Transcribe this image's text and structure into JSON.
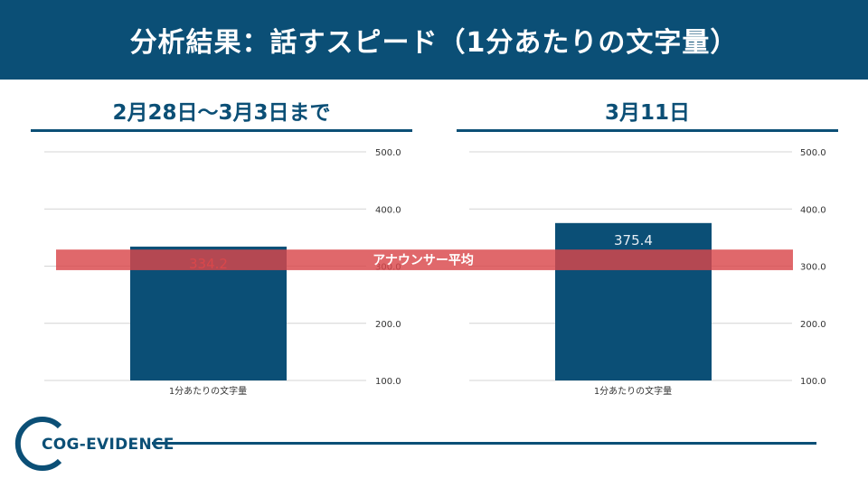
{
  "header": {
    "title": "分析結果：話すスピード（1分あたりの文字量）"
  },
  "colors": {
    "brand": "#0b4f76",
    "bar": "#0b4f76",
    "band": "#d9474b",
    "bar_label_over_band": "#d9474b",
    "bar_label": "#e6eef4"
  },
  "chart_data": [
    {
      "type": "bar",
      "title": "2月28日〜3月3日まで",
      "categories": [
        "1分あたりの文字量"
      ],
      "values": [
        334.2
      ],
      "value_labels": [
        "334.2"
      ],
      "ylim": [
        100,
        500
      ],
      "yticks": [
        "100.0",
        "200.0",
        "300.0",
        "400.0",
        "500.0"
      ],
      "grid": true,
      "reference_band": {
        "label": "アナウンサー平均",
        "from": 293,
        "to": 329
      }
    },
    {
      "type": "bar",
      "title": "3月11日",
      "categories": [
        "1分あたりの文字量"
      ],
      "values": [
        375.4
      ],
      "value_labels": [
        "375.4"
      ],
      "ylim": [
        100,
        500
      ],
      "yticks": [
        "100.0",
        "200.0",
        "300.0",
        "400.0",
        "500.0"
      ],
      "grid": true,
      "reference_band": {
        "label": "アナウンサー平均",
        "from": 293,
        "to": 329
      }
    }
  ],
  "logo": {
    "text": "COG-EVIDENCE",
    "icon": "ring-logo-icon"
  }
}
